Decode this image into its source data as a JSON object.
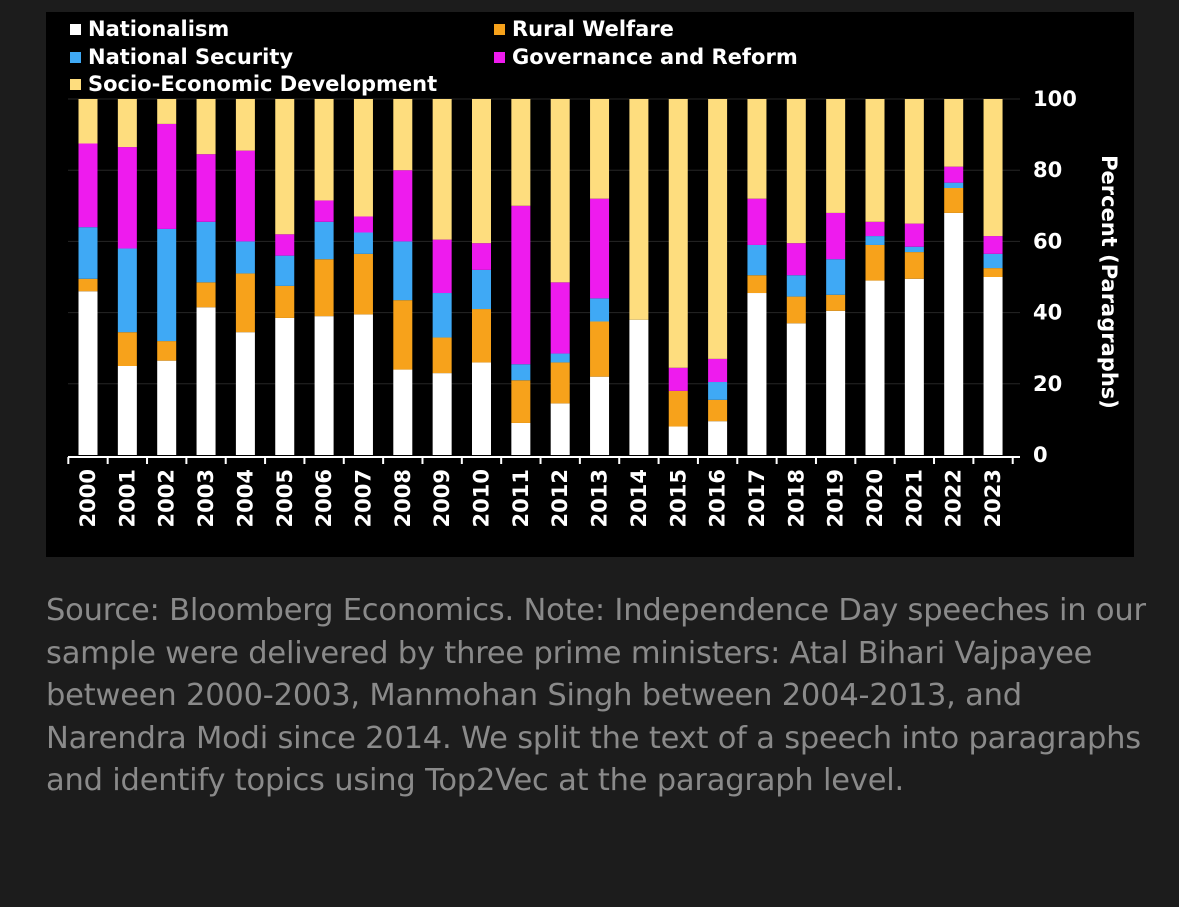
{
  "chart_data": {
    "type": "bar",
    "stacked": true,
    "title": "",
    "xlabel": "",
    "ylabel": "Percent (Paragraphs)",
    "ylim": [
      0,
      100
    ],
    "yticks": [
      0,
      20,
      40,
      60,
      80,
      100
    ],
    "y_axis_side": "right",
    "legend_position": "top-left",
    "categories": [
      "2000",
      "2001",
      "2002",
      "2003",
      "2004",
      "2005",
      "2006",
      "2007",
      "2008",
      "2009",
      "2010",
      "2011",
      "2012",
      "2013",
      "2014",
      "2015",
      "2016",
      "2017",
      "2018",
      "2019",
      "2020",
      "2021",
      "2022",
      "2023"
    ],
    "series": [
      {
        "name": "Nationalism",
        "color": "#ffffff",
        "values": [
          46,
          25,
          26.5,
          41.5,
          34.5,
          38.5,
          39,
          39.5,
          24,
          23,
          26,
          9,
          14.5,
          22,
          38,
          8,
          9.5,
          45.5,
          37,
          40.5,
          49,
          49.5,
          68,
          50
        ]
      },
      {
        "name": "Rural Welfare",
        "color": "#f7a21b",
        "values": [
          3.5,
          9.5,
          5.5,
          7,
          16.5,
          9,
          16,
          17,
          19.5,
          10,
          15,
          12,
          11.5,
          15.5,
          0,
          10,
          6,
          5,
          7.5,
          4.5,
          10,
          7.5,
          7,
          2.5
        ]
      },
      {
        "name": "National Security",
        "color": "#3fa9f5",
        "values": [
          14.5,
          23.5,
          31.5,
          17,
          9,
          8.5,
          10.5,
          6,
          16.5,
          12.5,
          11,
          4.5,
          2.5,
          6.5,
          0,
          0,
          5,
          8.5,
          6,
          10,
          2.5,
          1.5,
          1.5,
          4
        ]
      },
      {
        "name": "Governance and Reform",
        "color": "#ee1bee",
        "values": [
          23.5,
          28.5,
          29.5,
          19,
          25.5,
          6,
          6,
          4.5,
          20,
          15,
          7.5,
          44.5,
          20,
          28,
          0,
          6.5,
          6.5,
          13,
          9,
          13,
          4,
          6.5,
          4.5,
          5
        ]
      },
      {
        "name": "Socio-Economic Development",
        "color": "#fedd7e",
        "values": [
          12.5,
          13.5,
          7,
          15.5,
          14.5,
          38,
          28.5,
          33,
          20,
          39.5,
          40.5,
          30,
          51.5,
          28,
          62,
          75.5,
          73,
          28,
          40.5,
          32,
          34.5,
          35,
          19,
          38.5
        ]
      }
    ]
  },
  "note": {
    "text": "Source: Bloomberg Economics. Note: Independence Day speeches in our sample were delivered by three prime ministers: Atal Bihari Vajpayee between 2000-2003, Manmohan Singh between 2004-2013, and Narendra Modi since 2014. We split the text of a speech into paragraphs and identify topics using Top2Vec at the paragraph level."
  },
  "colors": {
    "page_background": "#1c1c1c",
    "chart_background": "#000000",
    "note_text": "#8a8a8a",
    "chart_text": "#ffffff",
    "gridline": "#262626"
  }
}
